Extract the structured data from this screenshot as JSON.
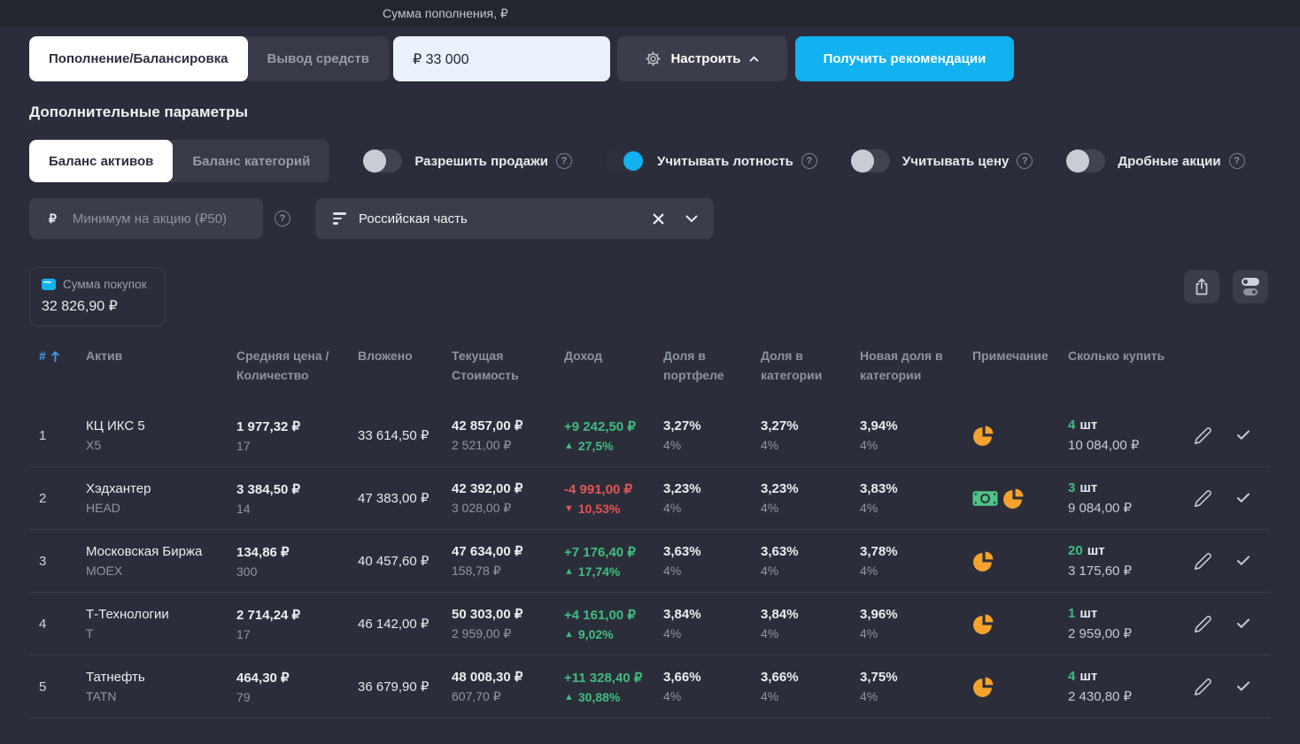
{
  "topbar": {
    "amount_label": "Сумма пополнения, ₽",
    "tabs": [
      {
        "label": "Пополнение/Балансировка",
        "active": true
      },
      {
        "label": "Вывод средств",
        "active": false
      }
    ],
    "amount_value": "₽ 33 000",
    "configure_label": "Настроить",
    "recommend_label": "Получить рекомендации"
  },
  "params": {
    "title": "Дополнительные параметры",
    "balance_tabs": [
      {
        "label": "Баланс активов",
        "active": true
      },
      {
        "label": "Баланс категорий",
        "active": false
      }
    ],
    "toggles": [
      {
        "label": "Разрешить продажи",
        "on": false
      },
      {
        "label": "Учитывать лотность",
        "on": true
      },
      {
        "label": "Учитывать цену",
        "on": false
      },
      {
        "label": "Дробные акции",
        "on": false
      }
    ],
    "min_input": {
      "prefix": "₽",
      "placeholder": "Минимум на акцию (₽50)"
    },
    "filter": {
      "value": "Российская часть"
    }
  },
  "summary": {
    "label": "Сумма покупок",
    "value": "32 826,90 ₽",
    "accent_color": "#12b1f0"
  },
  "table": {
    "headers": {
      "num": "#",
      "asset": "Актив",
      "avg": "Средняя цена / Количество",
      "invested": "Вложено",
      "current": "Текущая Стоимость",
      "income": "Доход",
      "share_portfolio": "Доля в портфеле",
      "share_category": "Доля в категории",
      "new_share": "Новая доля в категории",
      "note": "Примечание",
      "buy": "Сколько купить"
    },
    "rows": [
      {
        "num": "1",
        "name": "КЦ ИКС 5",
        "ticker": "X5",
        "avg_price": "1 977,32 ₽",
        "quantity": "17",
        "invested": "33 614,50 ₽",
        "current_value": "42 857,00 ₽",
        "current_per_share": "2 521,00 ₽",
        "income": "+9 242,50 ₽",
        "income_pct": "27,5%",
        "trend": "up",
        "share_portfolio": "3,27%",
        "share_portfolio_target": "4%",
        "share_category": "3,27%",
        "share_category_target": "4%",
        "new_share": "3,94%",
        "new_share_target": "4%",
        "notes": [
          "pie"
        ],
        "buy_qty": "4",
        "buy_unit": "шт",
        "buy_total": "10 084,00 ₽"
      },
      {
        "num": "2",
        "name": "Хэдхантер",
        "ticker": "HEAD",
        "avg_price": "3 384,50 ₽",
        "quantity": "14",
        "invested": "47 383,00 ₽",
        "current_value": "42 392,00 ₽",
        "current_per_share": "3 028,00 ₽",
        "income": "-4 991,00 ₽",
        "income_pct": "10,53%",
        "trend": "down",
        "share_portfolio": "3,23%",
        "share_portfolio_target": "4%",
        "share_category": "3,23%",
        "share_category_target": "4%",
        "new_share": "3,83%",
        "new_share_target": "4%",
        "notes": [
          "money",
          "pie"
        ],
        "buy_qty": "3",
        "buy_unit": "шт",
        "buy_total": "9 084,00 ₽"
      },
      {
        "num": "3",
        "name": "Московская Биржа",
        "ticker": "MOEX",
        "avg_price": "134,86 ₽",
        "quantity": "300",
        "invested": "40 457,60 ₽",
        "current_value": "47 634,00 ₽",
        "current_per_share": "158,78 ₽",
        "income": "+7 176,40 ₽",
        "income_pct": "17,74%",
        "trend": "up",
        "share_portfolio": "3,63%",
        "share_portfolio_target": "4%",
        "share_category": "3,63%",
        "share_category_target": "4%",
        "new_share": "3,78%",
        "new_share_target": "4%",
        "notes": [
          "pie"
        ],
        "buy_qty": "20",
        "buy_unit": "шт",
        "buy_total": "3 175,60 ₽"
      },
      {
        "num": "4",
        "name": "Т-Технологии",
        "ticker": "T",
        "avg_price": "2 714,24 ₽",
        "quantity": "17",
        "invested": "46 142,00 ₽",
        "current_value": "50 303,00 ₽",
        "current_per_share": "2 959,00 ₽",
        "income": "+4 161,00 ₽",
        "income_pct": "9,02%",
        "trend": "up",
        "share_portfolio": "3,84%",
        "share_portfolio_target": "4%",
        "share_category": "3,84%",
        "share_category_target": "4%",
        "new_share": "3,96%",
        "new_share_target": "4%",
        "notes": [
          "pie"
        ],
        "buy_qty": "1",
        "buy_unit": "шт",
        "buy_total": "2 959,00 ₽"
      },
      {
        "num": "5",
        "name": "Татнефть",
        "ticker": "TATN",
        "avg_price": "464,30 ₽",
        "quantity": "79",
        "invested": "36 679,90 ₽",
        "current_value": "48 008,30 ₽",
        "current_per_share": "607,70 ₽",
        "income": "+11 328,40 ₽",
        "income_pct": "30,88%",
        "trend": "up",
        "share_portfolio": "3,66%",
        "share_portfolio_target": "4%",
        "share_category": "3,66%",
        "share_category_target": "4%",
        "new_share": "3,75%",
        "new_share_target": "4%",
        "notes": [
          "pie"
        ],
        "buy_qty": "4",
        "buy_unit": "шт",
        "buy_total": "2 430,80 ₽"
      }
    ]
  }
}
